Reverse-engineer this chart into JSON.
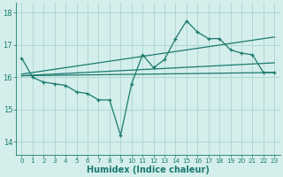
{
  "xlabel": "Humidex (Indice chaleur)",
  "bg_color": "#d4eeec",
  "grid_color": "#b0d8d4",
  "line_color": "#1a7a6e",
  "xlim": [
    -0.5,
    23.5
  ],
  "ylim": [
    13.6,
    18.3
  ],
  "yticks": [
    14,
    15,
    16,
    17,
    18
  ],
  "xticks": [
    0,
    1,
    2,
    3,
    4,
    5,
    6,
    7,
    8,
    9,
    10,
    11,
    12,
    13,
    14,
    15,
    16,
    17,
    18,
    19,
    20,
    21,
    22,
    23
  ],
  "series": [
    [
      0,
      16.6
    ],
    [
      1,
      16.0
    ],
    [
      2,
      15.85
    ],
    [
      3,
      15.8
    ],
    [
      4,
      15.75
    ],
    [
      5,
      15.55
    ],
    [
      6,
      15.5
    ],
    [
      7,
      15.3
    ],
    [
      8,
      15.3
    ],
    [
      9,
      14.2
    ],
    [
      10,
      15.8
    ],
    [
      11,
      16.7
    ],
    [
      12,
      16.3
    ],
    [
      13,
      16.55
    ],
    [
      14,
      17.2
    ],
    [
      15,
      17.75
    ],
    [
      16,
      17.4
    ],
    [
      17,
      17.2
    ],
    [
      18,
      17.2
    ],
    [
      19,
      16.85
    ],
    [
      20,
      16.75
    ],
    [
      21,
      16.7
    ],
    [
      22,
      16.15
    ],
    [
      23,
      16.15
    ]
  ],
  "trend_lines": [
    [
      [
        0,
        16.05
      ],
      [
        23,
        16.15
      ]
    ],
    [
      [
        0,
        16.05
      ],
      [
        23,
        16.45
      ]
    ],
    [
      [
        0,
        16.1
      ],
      [
        23,
        17.25
      ]
    ]
  ]
}
